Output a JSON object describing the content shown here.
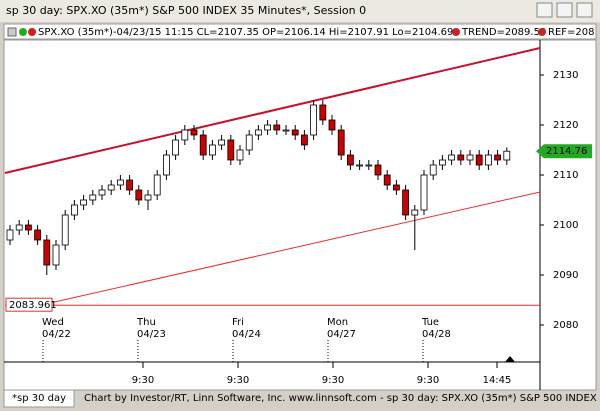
{
  "window_title": "sp 30 day: SPX.XO (35m*) S&P 500 INDEX 35 Minutes*, Session 0",
  "chart_data": {
    "type": "candlestick",
    "info": "SPX.XO (35m*)-04/23/15 11:15 CL=2107.35 OP=2106.14 Hi=2107.91 Lo=2104.69",
    "trend_label": "TREND=2089.50",
    "ref_label": "REF=208",
    "open": [
      2097,
      2099,
      2100,
      2099,
      2097,
      2092,
      2096,
      2102,
      2104,
      2105,
      2106,
      2107,
      2108,
      2109,
      2107,
      2105,
      2106,
      2110,
      2114,
      2117,
      2119,
      2118,
      2114,
      2116,
      2117,
      2113,
      2115,
      2118,
      2119,
      2120,
      2119,
      2119,
      2118,
      2118,
      2124,
      2121,
      2119,
      2114,
      2112,
      2112,
      2112,
      2110,
      2108,
      2107,
      2102,
      2103,
      2110,
      2112,
      2113,
      2114,
      2113,
      2114,
      2112,
      2114,
      2113
    ],
    "high": [
      2100,
      2101,
      2101,
      2100,
      2098,
      2097,
      2103,
      2105,
      2106,
      2107,
      2108,
      2109,
      2110,
      2110,
      2108,
      2107,
      2111,
      2115,
      2118,
      2120,
      2120,
      2119,
      2117,
      2118,
      2118,
      2116,
      2119,
      2120,
      2121,
      2121,
      2120,
      2120,
      2119,
      2125,
      2125,
      2122,
      2120,
      2115,
      2113,
      2113,
      2113,
      2111,
      2109,
      2108,
      2104,
      2111,
      2113,
      2114,
      2115,
      2115,
      2115,
      2115,
      2115,
      2115,
      2115.5
    ],
    "low": [
      2096,
      2098,
      2098,
      2096,
      2090,
      2091,
      2095,
      2101,
      2103,
      2104,
      2105,
      2106,
      2107,
      2106,
      2104,
      2103,
      2105,
      2109,
      2113,
      2116,
      2117,
      2113,
      2113,
      2115,
      2112,
      2112,
      2114,
      2117,
      2118,
      2118,
      2118,
      2117,
      2115,
      2117,
      2120,
      2118,
      2113,
      2111,
      2111,
      2111,
      2109,
      2107,
      2106,
      2101,
      2095,
      2102,
      2109,
      2111,
      2112,
      2112,
      2112,
      2111,
      2111,
      2112,
      2112
    ],
    "close": [
      2099,
      2100,
      2099,
      2097,
      2092,
      2096,
      2102,
      2104,
      2105,
      2106,
      2107,
      2108,
      2109,
      2107,
      2105,
      2106,
      2110,
      2114,
      2117,
      2119,
      2118,
      2114,
      2116,
      2117,
      2113,
      2115,
      2118,
      2119,
      2120,
      2119,
      2119,
      2118,
      2116,
      2124,
      2121,
      2119,
      2114,
      2112,
      2112,
      2112,
      2110,
      2108,
      2107,
      2102,
      2103,
      2110,
      2112,
      2113,
      2114,
      2113,
      2114,
      2112,
      2114,
      2113,
      2114.76
    ],
    "up_color": "#ffffff",
    "down_color": "#cc0000",
    "ylim": [
      2073,
      2137
    ],
    "yticks": [
      2080,
      2090,
      2100,
      2110,
      2120,
      2130
    ],
    "last_price": 2114.76,
    "last_color": "#22aa22",
    "trend_lines": [
      {
        "start": 2110.4,
        "end": 2135.4,
        "color": "#c8102e"
      },
      {
        "start": 2084.4,
        "end": 2106.6,
        "color": "#e8302e"
      }
    ],
    "reference": 2083.961,
    "reference_color": "#e03030",
    "days": [
      [
        "Wed",
        "04/22"
      ],
      [
        "Thu",
        "04/23"
      ],
      [
        "Fri",
        "04/24"
      ],
      [
        "Mon",
        "04/27"
      ],
      [
        "Tue",
        "04/28"
      ]
    ],
    "times": [
      "9:30",
      "9:30",
      "9:30",
      "9:30",
      "14:45"
    ]
  },
  "footer": {
    "tab": "*sp 30 day",
    "text": "Chart by Investor/RT, Linn Software, Inc. www.linnsoft.com - sp 30 day: SPX.XO (35m*) S&P 500 INDEX 35 Minutes*, Session 0"
  }
}
